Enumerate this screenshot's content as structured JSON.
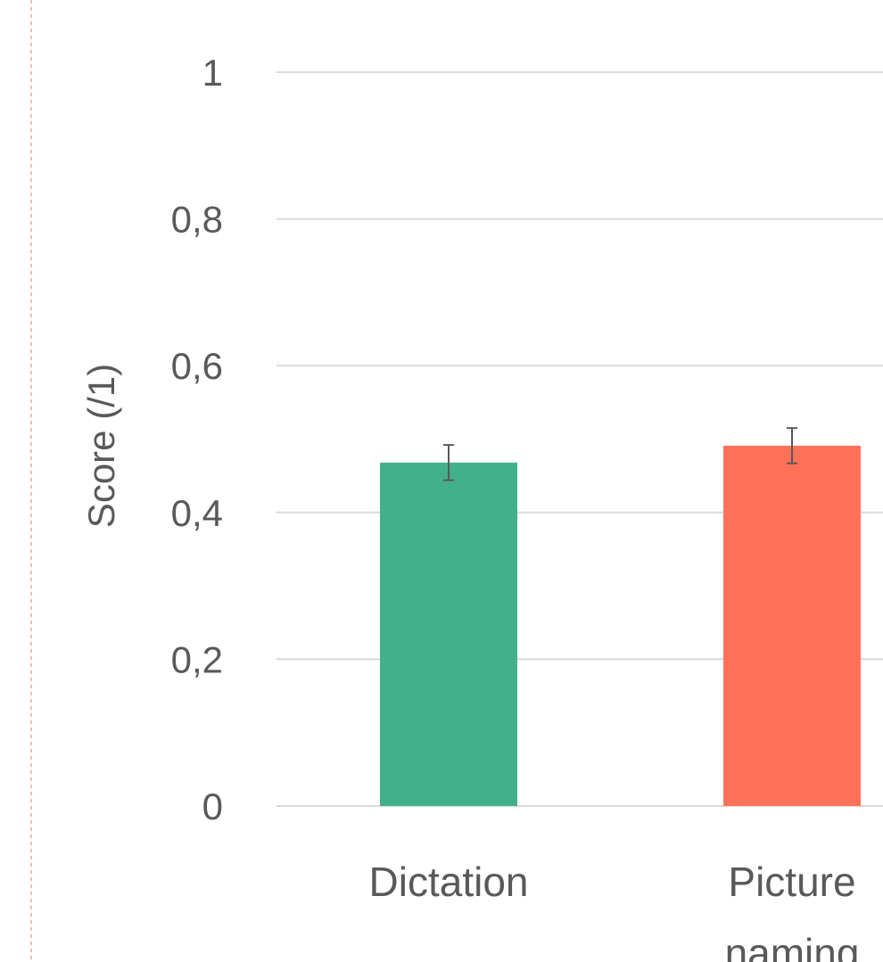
{
  "chart_data": {
    "type": "bar",
    "categories": [
      "Dictation",
      "Picture naming"
    ],
    "values": [
      0.468,
      0.491
    ],
    "error": [
      0.024,
      0.024
    ],
    "colors": [
      "#43b08c",
      "#ff7259"
    ],
    "title": "",
    "xlabel": "",
    "ylabel": "Score (/1)",
    "ylim": [
      0,
      1
    ],
    "yticks": [
      {
        "value": 0,
        "label": "0"
      },
      {
        "value": 0.2,
        "label": "0,2"
      },
      {
        "value": 0.4,
        "label": "0,4"
      },
      {
        "value": 0.6,
        "label": "0,6"
      },
      {
        "value": 0.8,
        "label": "0,8"
      },
      {
        "value": 1,
        "label": "1"
      }
    ],
    "grid": true,
    "legend": "none"
  }
}
